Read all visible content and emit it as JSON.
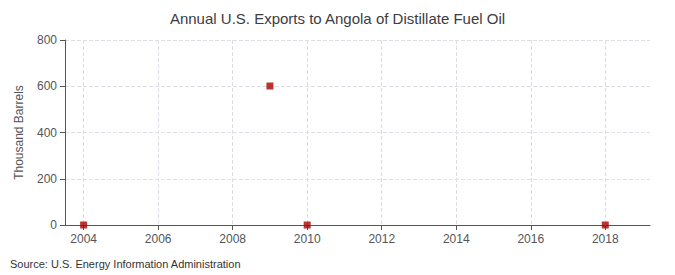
{
  "chart_data": {
    "type": "scatter",
    "title": "Annual U.S. Exports to Angola of Distillate Fuel Oil",
    "ylabel": "Thousand Barrels",
    "annotations": [
      "Source: U.S. Energy Information Administration"
    ],
    "x": [
      2004,
      2009,
      2010,
      2018
    ],
    "values": [
      0,
      601,
      0,
      0
    ],
    "color": "#aa0000",
    "marker": "square",
    "xlim": [
      2003.5,
      2019.2
    ],
    "xticks": [
      2004,
      2006,
      2008,
      2010,
      2012,
      2014,
      2016,
      2018
    ],
    "ylim": [
      0,
      800
    ],
    "yticks": [
      0,
      200,
      400,
      600,
      800
    ],
    "grid": true
  }
}
